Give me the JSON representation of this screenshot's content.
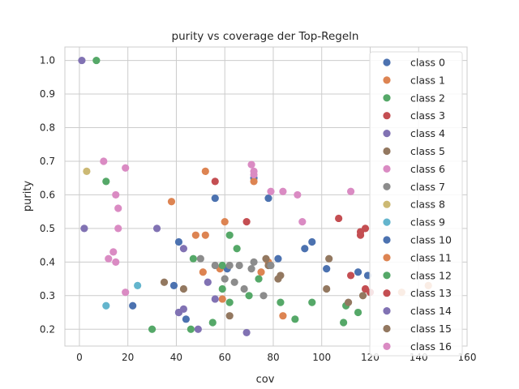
{
  "chart_data": {
    "type": "scatter",
    "title": "purity vs coverage der Top-Regeln",
    "xlabel": "cov",
    "ylabel": "purity",
    "xlim": [
      -6,
      160
    ],
    "ylim": [
      0.15,
      1.04
    ],
    "xticks": [
      0,
      20,
      40,
      60,
      80,
      100,
      120,
      140,
      160
    ],
    "yticks": [
      0.2,
      0.3,
      0.4,
      0.5,
      0.6,
      0.7,
      0.8,
      0.9,
      1.0
    ],
    "xtick_labels": [
      "0",
      "20",
      "40",
      "60",
      "80",
      "100",
      "120",
      "140",
      "160"
    ],
    "ytick_labels": [
      "0.2",
      "0.3",
      "0.4",
      "0.5",
      "0.6",
      "0.7",
      "0.8",
      "0.9",
      "1.0"
    ],
    "grid": true,
    "legend_position": "right",
    "series": [
      {
        "name": "class 0",
        "color": "#4c72b0",
        "points": [
          [
            56,
            0.59
          ],
          [
            72,
            0.65
          ],
          [
            78,
            0.59
          ],
          [
            41,
            0.46
          ],
          [
            82,
            0.41
          ],
          [
            96,
            0.46
          ],
          [
            93,
            0.44
          ],
          [
            102,
            0.38
          ],
          [
            115,
            0.37
          ],
          [
            119,
            0.36
          ],
          [
            61,
            0.38
          ],
          [
            39,
            0.33
          ],
          [
            22,
            0.27
          ],
          [
            44,
            0.23
          ],
          [
            41,
            0.25
          ]
        ]
      },
      {
        "name": "class 1",
        "color": "#dd8452",
        "points": [
          [
            38,
            0.58
          ],
          [
            52,
            0.67
          ],
          [
            72,
            0.64
          ],
          [
            60,
            0.52
          ],
          [
            48,
            0.48
          ],
          [
            52,
            0.48
          ],
          [
            58,
            0.38
          ],
          [
            51,
            0.37
          ],
          [
            75,
            0.37
          ],
          [
            59,
            0.29
          ],
          [
            84,
            0.24
          ],
          [
            78,
            0.4
          ],
          [
            133,
            0.31
          ],
          [
            144,
            0.33
          ]
        ]
      },
      {
        "name": "class 2",
        "color": "#55a868",
        "points": [
          [
            7,
            1.0
          ],
          [
            11,
            0.64
          ],
          [
            62,
            0.48
          ],
          [
            65,
            0.44
          ],
          [
            47,
            0.41
          ],
          [
            59,
            0.39
          ],
          [
            74,
            0.35
          ],
          [
            59,
            0.32
          ],
          [
            70,
            0.3
          ],
          [
            62,
            0.28
          ],
          [
            83,
            0.28
          ],
          [
            96,
            0.28
          ],
          [
            89,
            0.23
          ],
          [
            109,
            0.22
          ],
          [
            110,
            0.27
          ],
          [
            115,
            0.25
          ],
          [
            30,
            0.2
          ],
          [
            46,
            0.2
          ],
          [
            55,
            0.22
          ]
        ]
      },
      {
        "name": "class 3",
        "color": "#c44e52",
        "points": [
          [
            56,
            0.64
          ],
          [
            69,
            0.52
          ],
          [
            107,
            0.53
          ],
          [
            116,
            0.49
          ],
          [
            116,
            0.48
          ],
          [
            118,
            0.5
          ],
          [
            112,
            0.36
          ],
          [
            118,
            0.32
          ],
          [
            120,
            0.31
          ]
        ]
      },
      {
        "name": "class 4",
        "color": "#8172b3",
        "points": [
          [
            1,
            1.0
          ],
          [
            2,
            0.5
          ],
          [
            32,
            0.5
          ],
          [
            43,
            0.44
          ],
          [
            53,
            0.34
          ],
          [
            56,
            0.29
          ],
          [
            43,
            0.26
          ],
          [
            41,
            0.25
          ],
          [
            49,
            0.2
          ],
          [
            69,
            0.19
          ]
        ]
      },
      {
        "name": "class 5",
        "color": "#937860",
        "points": [
          [
            35,
            0.34
          ],
          [
            43,
            0.32
          ],
          [
            62,
            0.24
          ],
          [
            77,
            0.41
          ],
          [
            78,
            0.39
          ],
          [
            83,
            0.36
          ],
          [
            82,
            0.35
          ],
          [
            103,
            0.41
          ],
          [
            102,
            0.32
          ],
          [
            111,
            0.28
          ],
          [
            117,
            0.3
          ]
        ]
      },
      {
        "name": "class 6",
        "color": "#da8bc3",
        "points": [
          [
            10,
            0.7
          ],
          [
            19,
            0.68
          ],
          [
            15,
            0.6
          ],
          [
            16,
            0.56
          ],
          [
            16,
            0.5
          ],
          [
            14,
            0.43
          ],
          [
            12,
            0.41
          ],
          [
            15,
            0.4
          ],
          [
            19,
            0.31
          ],
          [
            71,
            0.69
          ],
          [
            72,
            0.66
          ],
          [
            72,
            0.67
          ],
          [
            79,
            0.61
          ],
          [
            84,
            0.61
          ],
          [
            90,
            0.6
          ],
          [
            92,
            0.52
          ],
          [
            112,
            0.61
          ]
        ]
      },
      {
        "name": "class 7",
        "color": "#8c8c8c",
        "points": [
          [
            50,
            0.41
          ],
          [
            56,
            0.39
          ],
          [
            60,
            0.35
          ],
          [
            62,
            0.39
          ],
          [
            64,
            0.34
          ],
          [
            66,
            0.39
          ],
          [
            68,
            0.32
          ],
          [
            71,
            0.38
          ],
          [
            72,
            0.4
          ],
          [
            76,
            0.3
          ],
          [
            79,
            0.39
          ]
        ]
      },
      {
        "name": "class 8",
        "color": "#ccb974",
        "points": [
          [
            3,
            0.67
          ]
        ]
      },
      {
        "name": "class 9",
        "color": "#64b5cd",
        "points": [
          [
            11,
            0.27
          ],
          [
            24,
            0.33
          ]
        ]
      }
    ],
    "legend_entries": [
      "class 0",
      "class 1",
      "class 2",
      "class 3",
      "class 4",
      "class 5",
      "class 6",
      "class 7",
      "class 8",
      "class 9",
      "class 10",
      "class 11",
      "class 12",
      "class 13",
      "class 14",
      "class 15",
      "class 16"
    ],
    "legend_colors": [
      "#4c72b0",
      "#dd8452",
      "#55a868",
      "#c44e52",
      "#8172b3",
      "#937860",
      "#da8bc3",
      "#8c8c8c",
      "#ccb974",
      "#64b5cd",
      "#4c72b0",
      "#dd8452",
      "#55a868",
      "#c44e52",
      "#8172b3",
      "#937860",
      "#da8bc3"
    ]
  }
}
